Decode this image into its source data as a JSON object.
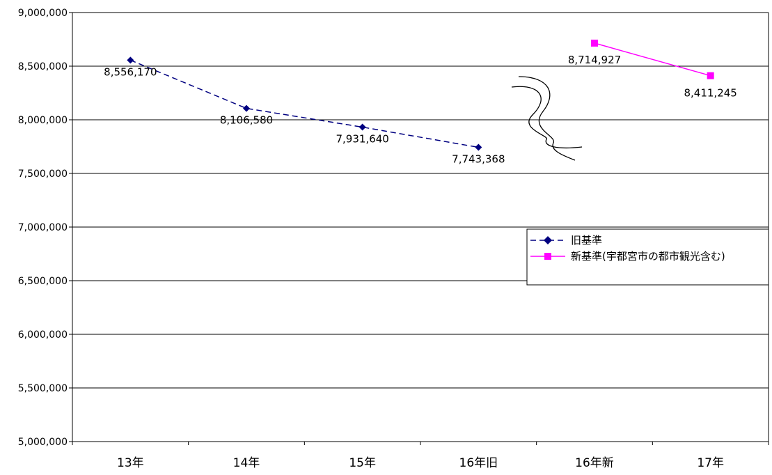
{
  "chart_data": {
    "type": "line",
    "categories": [
      "13年",
      "14年",
      "15年",
      "16年旧",
      "16年新",
      "17年"
    ],
    "ylim": [
      5000000,
      9000000
    ],
    "yticks": [
      5000000,
      5500000,
      6000000,
      6500000,
      7000000,
      7500000,
      8000000,
      8500000,
      9000000
    ],
    "ytick_labels": [
      "5,000,000",
      "5,500,000",
      "6,000,000",
      "6,500,000",
      "7,000,000",
      "7,500,000",
      "8,000,000",
      "8,500,000",
      "9,000,000"
    ],
    "grid": true,
    "legend_position": "right",
    "series": [
      {
        "name": "旧基準",
        "color": "#000080",
        "line_style": "dashed",
        "marker": "diamond",
        "points": [
          {
            "category": "13年",
            "value": 8556170,
            "label": "8,556,170"
          },
          {
            "category": "14年",
            "value": 8106580,
            "label": "8,106,580"
          },
          {
            "category": "15年",
            "value": 7931640,
            "label": "7,931,640"
          },
          {
            "category": "16年旧",
            "value": 7743368,
            "label": "7,743,368"
          }
        ]
      },
      {
        "name": "新基準(宇都宮市の都市観光含む)",
        "color": "#ff00ff",
        "line_style": "solid",
        "marker": "square",
        "points": [
          {
            "category": "16年新",
            "value": 8714927,
            "label": "8,714,927"
          },
          {
            "category": "17年",
            "value": 8411245,
            "label": "8,411,245"
          }
        ]
      }
    ]
  }
}
